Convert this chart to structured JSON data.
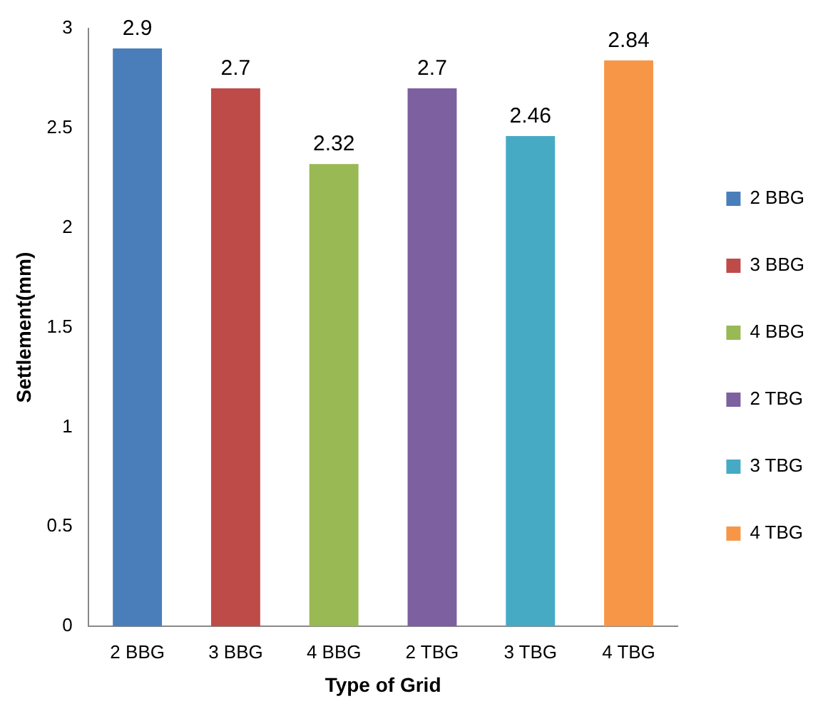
{
  "chart_data": {
    "type": "bar",
    "xlabel": "Type of Grid",
    "ylabel": "Settlement(mm)",
    "categories": [
      "2 BBG",
      "3 BBG",
      "4 BBG",
      "2 TBG",
      "3 TBG",
      "4 TBG"
    ],
    "series": [
      {
        "name": "2 BBG",
        "color": "#4a7ebb",
        "values": [
          2.9,
          null,
          null,
          null,
          null,
          null
        ]
      },
      {
        "name": "3 BBG",
        "color": "#be4b48",
        "values": [
          null,
          2.7,
          null,
          null,
          null,
          null
        ]
      },
      {
        "name": "4 BBG",
        "color": "#98b954",
        "values": [
          null,
          null,
          2.32,
          null,
          null,
          null
        ]
      },
      {
        "name": "2 TBG",
        "color": "#7d60a0",
        "values": [
          null,
          null,
          null,
          2.7,
          null,
          null
        ]
      },
      {
        "name": "3 TBG",
        "color": "#46aac5",
        "values": [
          null,
          null,
          null,
          null,
          2.46,
          null
        ]
      },
      {
        "name": "4 TBG",
        "color": "#f79646",
        "values": [
          null,
          null,
          null,
          null,
          null,
          2.84
        ]
      }
    ],
    "ylim": [
      0,
      3
    ],
    "yticks": [
      0,
      0.5,
      1,
      1.5,
      2,
      2.5,
      3
    ],
    "grid": false,
    "legend": "right",
    "data_labels": true
  }
}
